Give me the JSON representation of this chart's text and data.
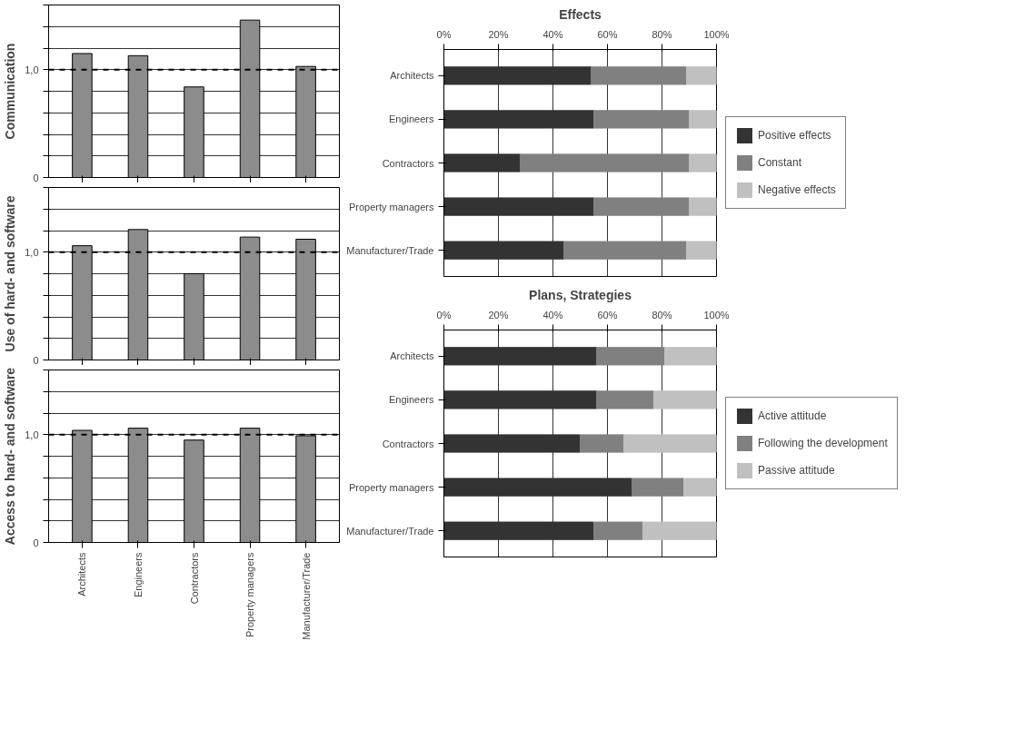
{
  "chart_data": [
    {
      "type": "bar",
      "ylabel": "Communication",
      "categories": [
        null,
        null,
        null,
        null,
        null
      ],
      "values": [
        1.15,
        1.13,
        0.84,
        1.46,
        1.03
      ],
      "color": "#8c8c8c",
      "ylim": [
        0,
        1.6
      ],
      "yticks": [
        0,
        {
          "value": 0.2,
          "label": null
        },
        {
          "value": 0.4,
          "label": null
        },
        {
          "value": 0.6,
          "label": null
        },
        {
          "value": 0.8,
          "label": null
        },
        {
          "value": 1.0,
          "label": "1,0"
        },
        {
          "value": 1.2,
          "label": null
        },
        {
          "value": 1.4,
          "label": null
        },
        {
          "value": 1.6,
          "label": null
        }
      ],
      "grid": "y",
      "tick_labels": "y",
      "ref_lines": [
        {
          "axis": "y",
          "value": 1.0,
          "color": "#000000",
          "line_style": "dashed"
        }
      ]
    },
    {
      "type": "bar",
      "ylabel": "Use of hard- and software",
      "categories": [
        null,
        null,
        null,
        null,
        null
      ],
      "values": [
        1.06,
        1.21,
        0.8,
        1.14,
        1.12
      ],
      "color": "#8c8c8c",
      "ylim": [
        0,
        1.6
      ],
      "yticks": [
        0,
        {
          "value": 0.2,
          "label": null
        },
        {
          "value": 0.4,
          "label": null
        },
        {
          "value": 0.6,
          "label": null
        },
        {
          "value": 0.8,
          "label": null
        },
        {
          "value": 1.0,
          "label": "1,0"
        },
        {
          "value": 1.2,
          "label": null
        },
        {
          "value": 1.4,
          "label": null
        },
        {
          "value": 1.6,
          "label": null
        }
      ],
      "grid": "y",
      "tick_labels": "y",
      "ref_lines": [
        {
          "axis": "y",
          "value": 1.0,
          "color": "#000000",
          "line_style": "dashed"
        }
      ]
    },
    {
      "type": "bar",
      "ylabel": "Access to hard- and software",
      "categories": [
        "Architects",
        "Engineers",
        "Contractors",
        "Property managers",
        "Manufacturer/Trade"
      ],
      "values": [
        1.04,
        1.06,
        0.95,
        1.06,
        0.99
      ],
      "color": "#8c8c8c",
      "ylim": [
        0,
        1.6
      ],
      "yticks": [
        0,
        {
          "value": 0.2,
          "label": null
        },
        {
          "value": 0.4,
          "label": null
        },
        {
          "value": 0.6,
          "label": null
        },
        {
          "value": 0.8,
          "label": null
        },
        {
          "value": 1.0,
          "label": "1,0"
        },
        {
          "value": 1.2,
          "label": null
        },
        {
          "value": 1.4,
          "label": null
        },
        {
          "value": 1.6,
          "label": null
        }
      ],
      "grid": "y",
      "ref_lines": [
        {
          "axis": "y",
          "value": 1.0,
          "color": "#000000",
          "line_style": "dashed"
        }
      ]
    },
    {
      "type": "bar",
      "title": "Effects",
      "orientation": "horizontal",
      "stacked": true,
      "categories": [
        "Architects",
        "Engineers",
        "Contractors",
        "Property managers",
        "Manufacturer/Trade"
      ],
      "xlim": [
        0,
        100
      ],
      "xticks": [
        {
          "value": 0,
          "label": "0%"
        },
        {
          "value": 20,
          "label": "20%"
        },
        {
          "value": 40,
          "label": "40%"
        },
        {
          "value": 60,
          "label": "60%"
        },
        {
          "value": 80,
          "label": "80%"
        },
        {
          "value": 100,
          "label": "100%"
        }
      ],
      "grid": "x",
      "legend": "right",
      "series": [
        {
          "name": "Positive effects",
          "color": "#333333",
          "values": [
            54,
            55,
            28,
            55,
            44
          ]
        },
        {
          "name": "Constant",
          "color": "#808080",
          "values": [
            35,
            35,
            62,
            35,
            45
          ]
        },
        {
          "name": "Negative effects",
          "color": "#c0c0c0",
          "values": [
            11,
            10,
            10,
            10,
            11
          ]
        }
      ]
    },
    {
      "type": "bar",
      "title": "Plans, Strategies",
      "orientation": "horizontal",
      "stacked": true,
      "categories": [
        "Architects",
        "Engineers",
        "Contractors",
        "Property managers",
        "Manufacturer/Trade"
      ],
      "xlim": [
        0,
        100
      ],
      "xticks": [
        {
          "value": 0,
          "label": "0%"
        },
        {
          "value": 20,
          "label": "20%"
        },
        {
          "value": 40,
          "label": "40%"
        },
        {
          "value": 60,
          "label": "60%"
        },
        {
          "value": 80,
          "label": "80%"
        },
        {
          "value": 100,
          "label": "100%"
        }
      ],
      "grid": "x",
      "legend": "right",
      "series": [
        {
          "name": "Active attitude",
          "color": "#333333",
          "values": [
            56,
            56,
            50,
            69,
            55
          ]
        },
        {
          "name": "Following the development",
          "color": "#808080",
          "values": [
            25,
            21,
            16,
            19,
            18
          ]
        },
        {
          "name": "Passive attitude",
          "color": "#c0c0c0",
          "values": [
            19,
            23,
            34,
            12,
            27
          ]
        }
      ]
    }
  ]
}
